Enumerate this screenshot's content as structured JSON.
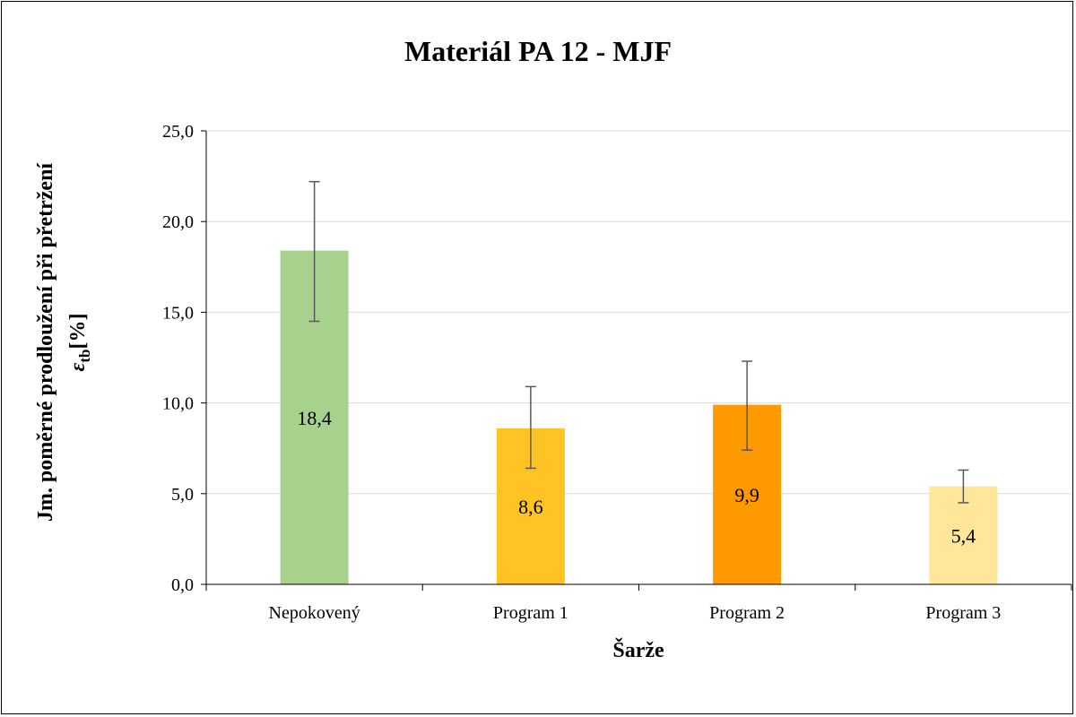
{
  "chart_data": {
    "type": "bar",
    "title": "Materiál PA 12 - MJF",
    "xlabel": "Šarže",
    "ylabel": {
      "line1": "Jm. poměrné prodloužení při přetržení",
      "symbol": "ε",
      "subscript": "tb",
      "unit": "[%]"
    },
    "categories": [
      "Nepokovený",
      "Program 1",
      "Program 2",
      "Program 3"
    ],
    "values": [
      18.4,
      8.6,
      9.9,
      5.4
    ],
    "value_labels": [
      "18,4",
      "8,6",
      "9,9",
      "5,4"
    ],
    "error_bars": [
      {
        "low": 14.5,
        "high": 22.2
      },
      {
        "low": 6.4,
        "high": 10.9
      },
      {
        "low": 7.4,
        "high": 12.3
      },
      {
        "low": 4.5,
        "high": 6.3
      }
    ],
    "bar_colors": [
      "#a9d18e",
      "#ffc423",
      "#ff9900",
      "#ffe699"
    ],
    "ylim": [
      0,
      25
    ],
    "yticks": [
      0,
      5,
      10,
      15,
      20,
      25
    ],
    "ytick_labels": [
      "0,0",
      "5,0",
      "10,0",
      "15,0",
      "20,0",
      "25,0"
    ],
    "grid": true,
    "legend": "none",
    "colors": {
      "grid": "#d9d9d9",
      "axis": "#000000",
      "error_bar": "#595959"
    }
  }
}
